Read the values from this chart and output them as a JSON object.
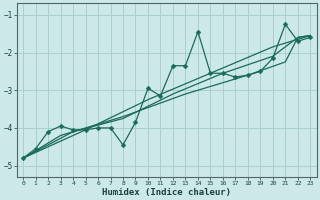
{
  "xlabel": "Humidex (Indice chaleur)",
  "bg_color": "#cce8e8",
  "grid_color": "#aacfcf",
  "line_color": "#1a6b5a",
  "axis_color": "#556666",
  "tick_color": "#1a4040",
  "xlim": [
    -0.5,
    23.5
  ],
  "ylim": [
    -5.3,
    -0.7
  ],
  "yticks": [
    -5,
    -4,
    -3,
    -2,
    -1
  ],
  "xticks": [
    0,
    1,
    2,
    3,
    4,
    5,
    6,
    7,
    8,
    9,
    10,
    11,
    12,
    13,
    14,
    15,
    16,
    17,
    18,
    19,
    20,
    21,
    22,
    23
  ],
  "series1": [
    [
      0,
      -4.8
    ],
    [
      1,
      -4.55
    ],
    [
      2,
      -4.1
    ],
    [
      3,
      -3.95
    ],
    [
      4,
      -4.05
    ],
    [
      5,
      -4.05
    ],
    [
      6,
      -4.0
    ],
    [
      7,
      -4.0
    ],
    [
      8,
      -4.45
    ],
    [
      9,
      -3.85
    ],
    [
      10,
      -2.95
    ],
    [
      11,
      -3.15
    ],
    [
      12,
      -2.35
    ],
    [
      13,
      -2.35
    ],
    [
      14,
      -1.45
    ],
    [
      15,
      -2.55
    ],
    [
      16,
      -2.55
    ],
    [
      17,
      -2.65
    ],
    [
      18,
      -2.6
    ],
    [
      19,
      -2.5
    ],
    [
      20,
      -2.15
    ],
    [
      21,
      -1.25
    ],
    [
      22,
      -1.7
    ],
    [
      23,
      -1.6
    ]
  ],
  "series2": [
    [
      0,
      -4.8
    ],
    [
      4,
      -4.1
    ],
    [
      8,
      -3.75
    ],
    [
      12,
      -3.1
    ],
    [
      16,
      -2.55
    ],
    [
      20,
      -2.1
    ],
    [
      22,
      -1.6
    ],
    [
      23,
      -1.55
    ]
  ],
  "series3": [
    [
      0,
      -4.8
    ],
    [
      5,
      -4.05
    ],
    [
      10,
      -3.25
    ],
    [
      15,
      -2.55
    ],
    [
      20,
      -1.85
    ],
    [
      23,
      -1.55
    ]
  ],
  "series4": [
    [
      0,
      -4.8
    ],
    [
      3,
      -4.2
    ],
    [
      8,
      -3.7
    ],
    [
      13,
      -3.1
    ],
    [
      18,
      -2.6
    ],
    [
      21,
      -2.25
    ],
    [
      22,
      -1.6
    ],
    [
      23,
      -1.55
    ]
  ]
}
